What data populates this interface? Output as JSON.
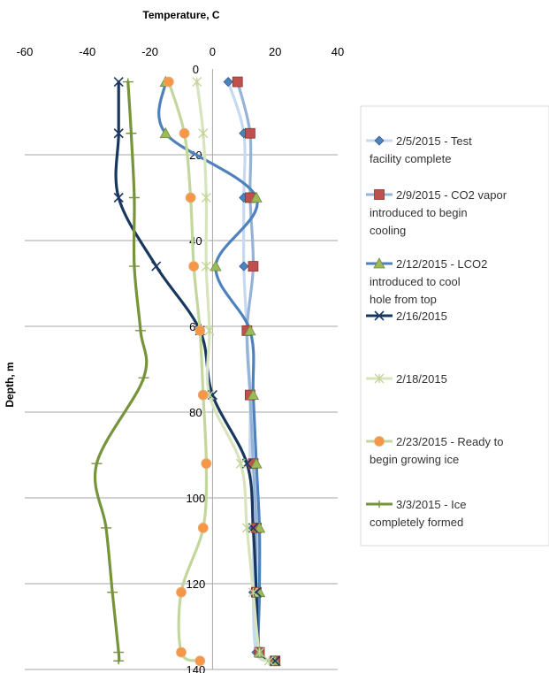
{
  "chart_data": {
    "type": "line",
    "title": "",
    "xlabel": "Temperature, C",
    "ylabel": "Depth, m",
    "xlim": [
      -60,
      40
    ],
    "ylim": [
      0,
      140
    ],
    "x_ticks": [
      -60,
      -40,
      -20,
      0,
      20,
      40
    ],
    "y_ticks": [
      0,
      20,
      40,
      60,
      80,
      100,
      120,
      140
    ],
    "x_axis_position": "top",
    "y_axis_reversed": true,
    "grid": "horizontal",
    "legend": "right",
    "series": [
      {
        "name": "2/5/2015 - Test facility complete",
        "color": "#4f81bd",
        "line_color": "#c6d9f1",
        "marker": "diamond",
        "points": [
          [
            5,
            3
          ],
          [
            10,
            15
          ],
          [
            10,
            30
          ],
          [
            10,
            46
          ],
          [
            11,
            61
          ],
          [
            12,
            76
          ],
          [
            12,
            92
          ],
          [
            13,
            107
          ],
          [
            13,
            122
          ],
          [
            14,
            136
          ],
          [
            19,
            138
          ]
        ]
      },
      {
        "name": "2/9/2015 - CO2 vapor introduced to begin cooling",
        "color": "#c0504d",
        "line_color": "#95b3d7",
        "marker": "square",
        "points": [
          [
            8,
            3
          ],
          [
            12,
            15
          ],
          [
            12,
            30
          ],
          [
            13,
            46
          ],
          [
            11,
            61
          ],
          [
            12,
            76
          ],
          [
            13,
            92
          ],
          [
            14,
            107
          ],
          [
            14,
            122
          ],
          [
            15,
            136
          ],
          [
            20,
            138
          ]
        ]
      },
      {
        "name": "2/12/2015 - LCO2 introduced to cool hole from top",
        "color": "#9bbb59",
        "line_color": "#4f81bd",
        "marker": "triangle",
        "points": [
          [
            -15,
            3
          ],
          [
            -15,
            15
          ],
          [
            14,
            30
          ],
          [
            1,
            46
          ],
          [
            12,
            61
          ],
          [
            13,
            76
          ],
          [
            14,
            92
          ],
          [
            15,
            107
          ],
          [
            15,
            122
          ],
          [
            15,
            136
          ],
          [
            20,
            138
          ]
        ]
      },
      {
        "name": "2/16/2015",
        "color": "#1f3864",
        "line_color": "#17375e",
        "marker": "x",
        "points": [
          [
            -30,
            3
          ],
          [
            -30,
            15
          ],
          [
            -30,
            30
          ],
          [
            -18,
            46
          ],
          [
            -4,
            61
          ],
          [
            0,
            76
          ],
          [
            11,
            92
          ],
          [
            13,
            107
          ],
          [
            14,
            122
          ],
          [
            15,
            136
          ],
          [
            20,
            138
          ]
        ]
      },
      {
        "name": "2/18/2015",
        "color": "#d7e4bd",
        "line_color": "#d7e4bd",
        "marker": "star",
        "points": [
          [
            -5,
            3
          ],
          [
            -3,
            15
          ],
          [
            -2,
            30
          ],
          [
            -2,
            46
          ],
          [
            -1,
            61
          ],
          [
            -1,
            76
          ],
          [
            9,
            92
          ],
          [
            11,
            107
          ],
          [
            13,
            122
          ],
          [
            15,
            136
          ],
          [
            18,
            138
          ]
        ]
      },
      {
        "name": "2/23/2015 - Ready to begin growing ice",
        "color": "#f79646",
        "line_color": "#c3d69b",
        "marker": "circle",
        "points": [
          [
            -14,
            3
          ],
          [
            -9,
            15
          ],
          [
            -7,
            30
          ],
          [
            -6,
            46
          ],
          [
            -4,
            61
          ],
          [
            -3,
            76
          ],
          [
            -2,
            92
          ],
          [
            -3,
            107
          ],
          [
            -10,
            122
          ],
          [
            -10,
            136
          ],
          [
            -4,
            138
          ]
        ]
      },
      {
        "name": "3/3/2015 - Ice completely formed",
        "color": "#77933c",
        "line_color": "#77933c",
        "marker": "plus",
        "points": [
          [
            -27,
            3
          ],
          [
            -26,
            15
          ],
          [
            -25,
            30
          ],
          [
            -25,
            46
          ],
          [
            -23,
            61
          ],
          [
            -22,
            72
          ],
          [
            -37,
            92
          ],
          [
            -34,
            107
          ],
          [
            -32,
            122
          ],
          [
            -30,
            136
          ],
          [
            -30,
            138
          ]
        ]
      }
    ]
  }
}
